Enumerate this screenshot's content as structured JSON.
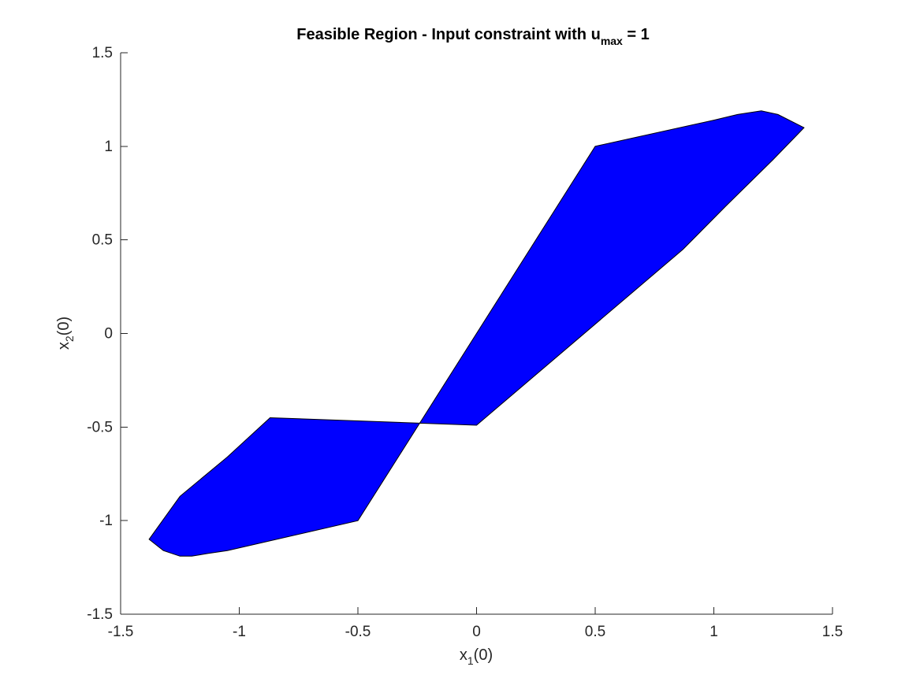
{
  "chart_data": {
    "type": "area",
    "title": {
      "main": "Feasible Region - Input constraint with u",
      "subscript": "max",
      "suffix": " = 1"
    },
    "xlabel": {
      "base": "x",
      "subscript": "1",
      "suffix": "(0)"
    },
    "ylabel": {
      "base": "x",
      "subscript": "2",
      "suffix": "(0)"
    },
    "xlim": [
      -1.5,
      1.5
    ],
    "ylim": [
      -1.5,
      1.5
    ],
    "xticks": [
      -1.5,
      -1,
      -0.5,
      0,
      0.5,
      1,
      1.5
    ],
    "yticks": [
      -1.5,
      -1,
      -0.5,
      0,
      0.5,
      1,
      1.5
    ],
    "xtick_labels": [
      "-1.5",
      "-1",
      "-0.5",
      "0",
      "0.5",
      "1",
      "1.5"
    ],
    "ytick_labels": [
      "-1.5",
      "-1",
      "-0.5",
      "0",
      "0.5",
      "1",
      "1.5"
    ],
    "grid": false,
    "fill_color": "#0000ff",
    "edge_color": "#000000",
    "region": {
      "x": [
        -1.38,
        -1.32,
        -1.25,
        -1.2,
        -1.13,
        -1.05,
        -0.5,
        0.5,
        1.0,
        1.1,
        1.2,
        1.27,
        1.38,
        1.25,
        1.05,
        0.87,
        0.0,
        -0.87,
        -1.05,
        -1.25,
        -1.38
      ],
      "y": [
        -1.1,
        -1.16,
        -1.19,
        -1.19,
        -1.175,
        -1.16,
        -1.0,
        1.0,
        1.14,
        1.17,
        1.19,
        1.17,
        1.1,
        0.93,
        0.68,
        0.45,
        -0.49,
        -0.45,
        -0.66,
        -0.87,
        -1.1
      ]
    }
  }
}
